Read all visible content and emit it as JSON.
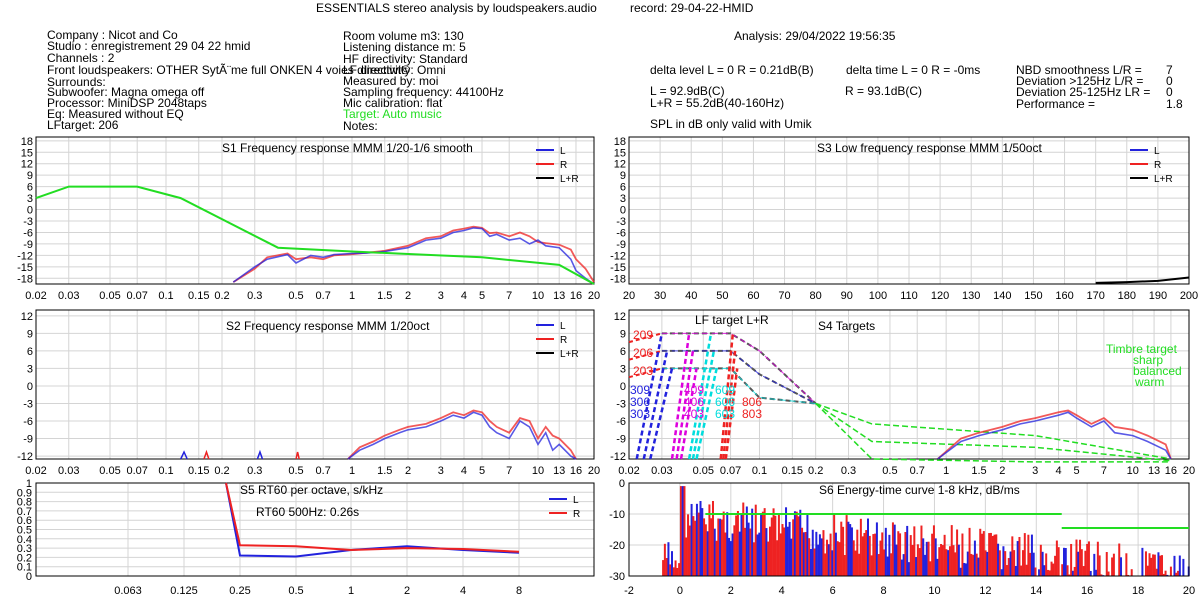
{
  "header": {
    "title": "ESSENTIALS stereo analysis by loudspeakers.audio",
    "record": "record: 29-04-22-HMID",
    "analysis": "Analysis: 29/04/2022 19:56:35"
  },
  "info_left": [
    "Company : Nicot and Co",
    "Studio : enregistrement 29 04 22 hmid",
    "Channels : 2",
    "Front loudspeakers: OTHER SytÃ¨me full ONKEN 4 voies directivit©",
    "Surrounds:",
    "Subwoofer: Magna omega off",
    "Processor: MiniDSP 2048taps",
    "Eq: Measured without EQ",
    "LFtarget: 206"
  ],
  "info_mid": [
    "Room volume m3: 130",
    "Listening distance m: 5",
    "HF directivity: Standard",
    "LF directivity: Omni",
    "Measured by: moi",
    "Sampling frequency: 44100Hz",
    "Mic calibration: flat",
    "Target: Auto music",
    "Notes:"
  ],
  "colors": {
    "L": "#2222dd",
    "R": "#ee2222",
    "LR": "#000000",
    "target": "#22dd22",
    "grid": "#d4d4d4",
    "magenta": "#dd00dd",
    "cyan": "#00dddd"
  },
  "metrics": {
    "delta_level": "delta level L = 0  R = 0.21dB(B)",
    "delta_time": "delta time  L = 0  R = -0ms",
    "L_spl": "L =      92.9dB(C)",
    "R_spl": "R =      93.1dB(C)",
    "LR_spl": "L+R = 55.2dB(40-160Hz)",
    "spl_note": "SPL in dB only valid with Umik",
    "nbd": {
      "label": "NBD smoothness L/R =",
      "value": "7"
    },
    "dev_hi": {
      "label": "Deviation >125Hz L/R =",
      "value": "0"
    },
    "dev_lo": {
      "label": "Deviation 25-125Hz LR =",
      "value": "0"
    },
    "performance": {
      "label": "Performance =",
      "value": "1.8"
    }
  },
  "chart_data": [
    {
      "id": "S1",
      "type": "line",
      "title": "S1  Frequency response MMM 1/20-1/6 smooth",
      "x_scale": "log",
      "x_ticks": [
        "0.02",
        "0.03",
        "0.05",
        "0.07",
        "0.1",
        "0.15",
        "0.2",
        "0.3",
        "0.5",
        "0.7",
        "1",
        "1.5",
        "2",
        "3",
        "4",
        "5",
        "7",
        "10",
        "13",
        "16",
        "20"
      ],
      "y_ticks": [
        "18",
        "15",
        "12",
        "9",
        "6",
        "3",
        "0",
        "-3",
        "-6",
        "-9",
        "-12",
        "-15",
        "-18"
      ],
      "ylim": [
        -19.5,
        19
      ],
      "legend": [
        "L",
        "R",
        "L+R"
      ],
      "series": [
        {
          "name": "L",
          "x": [
            0.23,
            0.3,
            0.35,
            0.45,
            0.5,
            0.6,
            0.7,
            0.8,
            1,
            1.2,
            1.5,
            2,
            2.5,
            3,
            3.5,
            4,
            4.5,
            5,
            5.5,
            6,
            7,
            8,
            9,
            10,
            11,
            13,
            15,
            16,
            18,
            20
          ],
          "y": [
            -19,
            -15,
            -13,
            -11.8,
            -14,
            -12,
            -12.5,
            -11.8,
            -11.5,
            -11.4,
            -11,
            -10,
            -8,
            -7.5,
            -6,
            -5.5,
            -4.8,
            -5,
            -7,
            -6.5,
            -8,
            -7.5,
            -9,
            -8,
            -9.5,
            -10,
            -13,
            -16,
            -18,
            -19.5
          ]
        },
        {
          "name": "R",
          "x": [
            0.23,
            0.3,
            0.35,
            0.45,
            0.5,
            0.6,
            0.7,
            0.8,
            1,
            1.2,
            1.5,
            2,
            2.5,
            3,
            3.5,
            4,
            4.5,
            5,
            5.5,
            6,
            7,
            8,
            9,
            10,
            11,
            13,
            15,
            16,
            18,
            20
          ],
          "y": [
            -19,
            -15.5,
            -12.5,
            -11.5,
            -13,
            -12.5,
            -13,
            -12,
            -11.7,
            -11.3,
            -10.8,
            -9.5,
            -7.5,
            -7,
            -5.5,
            -5,
            -4.5,
            -4.8,
            -6.2,
            -6,
            -7,
            -6,
            -7,
            -8.5,
            -8.8,
            -9.2,
            -10.5,
            -13,
            -15.5,
            -19
          ]
        },
        {
          "name": "target",
          "x": [
            0.02,
            0.03,
            0.07,
            0.12,
            0.4,
            1,
            5,
            13,
            20
          ],
          "y": [
            3,
            6,
            6,
            3,
            -10,
            -11,
            -12.5,
            -14.5,
            -19.5
          ]
        }
      ]
    },
    {
      "id": "S3",
      "type": "line",
      "title": "S3  Low frequency response MMM 1/50oct",
      "x_scale": "linear",
      "x_ticks": [
        "20",
        "30",
        "40",
        "50",
        "60",
        "70",
        "80",
        "90",
        "100",
        "110",
        "120",
        "130",
        "140",
        "150",
        "160",
        "170",
        "180",
        "190",
        "200"
      ],
      "y_ticks": [
        "18",
        "15",
        "12",
        "9",
        "6",
        "3",
        "0",
        "-3",
        "-6",
        "-9",
        "-12",
        "-15",
        "-18"
      ],
      "ylim": [
        -19.5,
        19
      ],
      "legend": [
        "L",
        "R",
        "L+R"
      ],
      "series": [
        {
          "name": "L+R",
          "x": [
            170,
            180,
            190,
            200
          ],
          "y": [
            -19.2,
            -19,
            -18.7,
            -17.8
          ]
        }
      ]
    },
    {
      "id": "S2",
      "type": "line",
      "title": "S2  Frequency response MMM 1/20oct",
      "x_scale": "log",
      "x_ticks": [
        "0.02",
        "0.03",
        "0.05",
        "0.07",
        "0.1",
        "0.15",
        "0.2",
        "0.3",
        "0.5",
        "0.7",
        "1",
        "1.5",
        "2",
        "3",
        "4",
        "5",
        "7",
        "10",
        "13",
        "16",
        "20"
      ],
      "y_ticks": [
        "12",
        "9",
        "6",
        "3",
        "0",
        "-3",
        "-6",
        "-9",
        "-12"
      ],
      "ylim": [
        -12.5,
        13
      ],
      "legend": [
        "L",
        "R",
        "L+R"
      ],
      "series": [
        {
          "name": "L",
          "x": [
            0.95,
            1.1,
            1.3,
            1.5,
            1.8,
            2,
            2.5,
            3,
            3.5,
            4,
            4.5,
            5,
            5.5,
            6,
            7,
            8,
            9,
            10,
            11,
            12,
            13,
            15,
            16
          ],
          "y": [
            -12.5,
            -11,
            -10,
            -9,
            -8,
            -7.5,
            -7,
            -6,
            -5,
            -5.5,
            -4.5,
            -5,
            -7,
            -8,
            -9,
            -6,
            -7,
            -10,
            -8,
            -11,
            -10,
            -12,
            -12.5
          ]
        },
        {
          "name": "R",
          "x": [
            0.95,
            1.1,
            1.3,
            1.5,
            1.8,
            2,
            2.5,
            3,
            3.5,
            4,
            4.5,
            5,
            5.5,
            6,
            7,
            8,
            9,
            10,
            11,
            12,
            13,
            15,
            16
          ],
          "y": [
            -12.5,
            -10.5,
            -9.5,
            -8.5,
            -7.5,
            -7,
            -6.5,
            -5.5,
            -4.5,
            -5,
            -4.2,
            -4.5,
            -6,
            -7,
            -8,
            -5.5,
            -6,
            -9,
            -7,
            -8.5,
            -9,
            -11,
            -12.5
          ]
        }
      ]
    },
    {
      "id": "S4",
      "type": "line",
      "title": "S4 Targets",
      "subtitle": "LF target L+R",
      "x_scale": "log",
      "x_ticks": [
        "0.02",
        "0.03",
        "0.05",
        "0.07",
        "0.1",
        "0.15",
        "0.2",
        "0.3",
        "0.5",
        "0.7",
        "1",
        "1.5",
        "2",
        "3",
        "4",
        "5",
        "7",
        "10",
        "13",
        "16",
        "20"
      ],
      "y_ticks": [
        "12",
        "9",
        "6",
        "3",
        "0",
        "-3",
        "-6",
        "-9",
        "-12"
      ],
      "ylim": [
        -12.5,
        13
      ],
      "target_labels_red": [
        "209",
        "206",
        "203"
      ],
      "labels_blue": [
        "309",
        "306",
        "303"
      ],
      "labels_magenta": [
        "409",
        "406",
        "403"
      ],
      "labels_cyan": [
        "609",
        "606",
        "603"
      ],
      "labels_red2": [
        "806",
        "803"
      ],
      "timbre": [
        "Timbre target",
        "sharp",
        "balanced",
        "warm"
      ],
      "series": [
        {
          "name": "L",
          "x": [
            0.9,
            1.2,
            1.5,
            2,
            2.5,
            3,
            4,
            4.5,
            5,
            6,
            7,
            8,
            10,
            12,
            15,
            16
          ],
          "y": [
            -12.5,
            -9.5,
            -8.5,
            -7.5,
            -6.5,
            -6,
            -5,
            -4.5,
            -5.5,
            -7,
            -6,
            -8,
            -8.5,
            -9.5,
            -11,
            -12.5
          ]
        },
        {
          "name": "R",
          "x": [
            0.9,
            1.2,
            1.5,
            2,
            2.5,
            3,
            4,
            4.5,
            5,
            6,
            7,
            8,
            10,
            12,
            15,
            16
          ],
          "y": [
            -12.5,
            -9,
            -8,
            -7,
            -6,
            -5.5,
            -4.5,
            -4.2,
            -5,
            -6.5,
            -5.5,
            -7,
            -7.5,
            -8.5,
            -10,
            -12.5
          ]
        }
      ]
    },
    {
      "id": "S5",
      "type": "line",
      "title": "S5  RT60 per octave, s/kHz",
      "annotation": "RT60 500Hz: 0.26s",
      "x_ticks": [
        "0.063",
        "0.125",
        "0.25",
        "0.5",
        "1",
        "2",
        "4",
        "8"
      ],
      "y_ticks": [
        "1",
        "0.9",
        "0.8",
        "0.7",
        "0.6",
        "0.5",
        "0.4",
        "0.3",
        "0.2",
        "0.1",
        "0"
      ],
      "ylim": [
        0,
        1
      ],
      "legend": [
        "L",
        "R"
      ],
      "series": [
        {
          "name": "L",
          "x": [
            "0.25",
            "0.5",
            "1",
            "2",
            "4",
            "8"
          ],
          "y": [
            0.22,
            0.21,
            0.28,
            0.32,
            0.28,
            0.25
          ]
        },
        {
          "name": "R",
          "x": [
            "0.25",
            "0.5",
            "1",
            "2",
            "4",
            "8"
          ],
          "y": [
            0.33,
            0.32,
            0.28,
            0.3,
            0.29,
            0.26
          ]
        }
      ]
    },
    {
      "id": "S6",
      "type": "bar",
      "title": "S6  Energy-time curve 1-8 kHz, dB/ms",
      "x_ticks": [
        "-2",
        "0",
        "2",
        "4",
        "6",
        "8",
        "10",
        "12",
        "14",
        "16",
        "18",
        "20"
      ],
      "y_ticks": [
        "0",
        "-10",
        "-20",
        "-30"
      ],
      "ylim": [
        -30,
        0
      ],
      "xlim": [
        -2,
        20
      ],
      "target_segments": [
        {
          "x": [
            1,
            15
          ],
          "y": -10
        },
        {
          "x": [
            15,
            20
          ],
          "y": -14.5
        }
      ]
    }
  ]
}
